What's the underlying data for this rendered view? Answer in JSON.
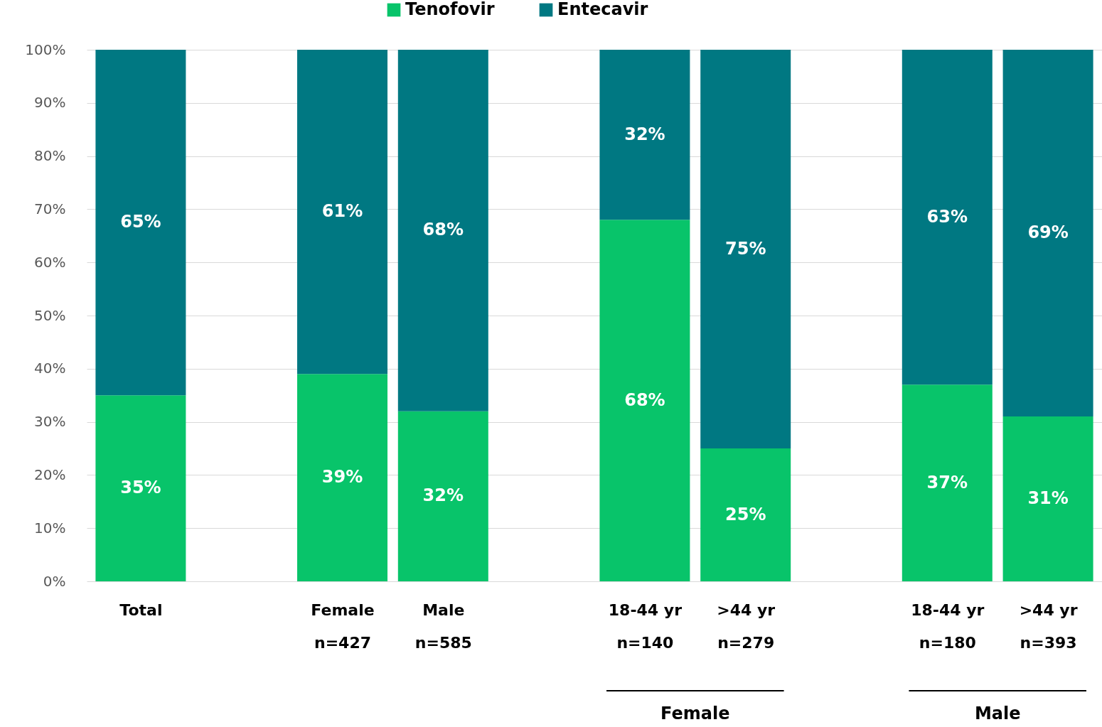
{
  "chart_data": {
    "type": "bar",
    "stacked": true,
    "categories": [
      "Total",
      null,
      "Female\nn=427",
      "Male\nn=585",
      null,
      "18-44 yr\nn=140",
      ">44 yr\nn=279",
      null,
      "18-44 yr\nn=180",
      ">44 yr\nn=393"
    ],
    "series": [
      {
        "name": "Tenofovir",
        "color": "#08c46a",
        "values": [
          35,
          null,
          39,
          32,
          null,
          68,
          25,
          null,
          37,
          31
        ],
        "value_labels": [
          "35%",
          null,
          "39%",
          "32%",
          null,
          "68%",
          "25%",
          null,
          "37%",
          "31%"
        ]
      },
      {
        "name": "Entecavir",
        "color": "#007882",
        "values": [
          65,
          null,
          61,
          68,
          null,
          32,
          75,
          null,
          63,
          69
        ],
        "value_labels": [
          "65%",
          null,
          "61%",
          "68%",
          null,
          "32%",
          "75%",
          null,
          "63%",
          "69%"
        ]
      }
    ],
    "ylim": [
      0,
      100
    ],
    "yticks": [
      {
        "value": 0,
        "label": "0%"
      },
      {
        "value": 10,
        "label": "10%"
      },
      {
        "value": 20,
        "label": "20%"
      },
      {
        "value": 30,
        "label": "30%"
      },
      {
        "value": 40,
        "label": "40%"
      },
      {
        "value": 50,
        "label": "50%"
      },
      {
        "value": 60,
        "label": "60%"
      },
      {
        "value": 70,
        "label": "70%"
      },
      {
        "value": 80,
        "label": "80%"
      },
      {
        "value": 90,
        "label": "90%"
      },
      {
        "value": 100,
        "label": "100%"
      }
    ],
    "grid": "y",
    "legend": "top",
    "annotations": [
      "Female",
      "Male"
    ]
  }
}
